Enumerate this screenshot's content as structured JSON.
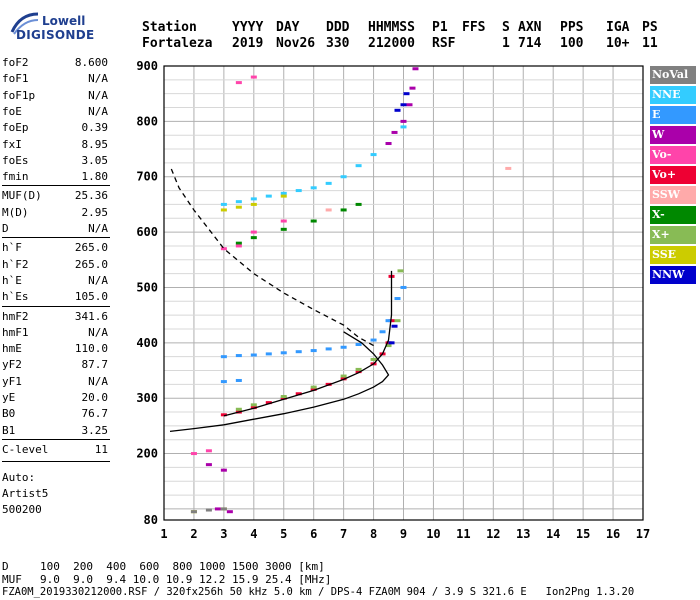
{
  "logo": {
    "line1": "Lowell",
    "line2": "DIGISONDE"
  },
  "header": {
    "labels": [
      "Station",
      "YYYY",
      "DAY",
      "DDD",
      "HHMMSS",
      "P1",
      "FFS",
      "S",
      "AXN",
      "PPS",
      "IGA",
      "PS"
    ],
    "values": [
      "Fortaleza",
      "2019",
      "Nov26",
      "330",
      "212000",
      "RSF",
      "",
      "1",
      "714",
      "100",
      "10+",
      "11"
    ]
  },
  "params": [
    {
      "label": "foF2",
      "value": "8.600"
    },
    {
      "label": "foF1",
      "value": "N/A"
    },
    {
      "label": "foF1p",
      "value": "N/A"
    },
    {
      "label": "foE",
      "value": "N/A"
    },
    {
      "label": "foEp",
      "value": "0.39"
    },
    {
      "label": "fxI",
      "value": "8.95"
    },
    {
      "label": "foEs",
      "value": "3.05"
    },
    {
      "label": "fmin",
      "value": "1.80"
    },
    {
      "label": "MUF(D)",
      "value": "25.36"
    },
    {
      "label": "M(D)",
      "value": "2.95"
    },
    {
      "label": "D",
      "value": "N/A"
    },
    {
      "label": "h`F",
      "value": "265.0"
    },
    {
      "label": "h`F2",
      "value": "265.0"
    },
    {
      "label": "h`E",
      "value": "N/A"
    },
    {
      "label": "h`Es",
      "value": "105.0"
    },
    {
      "label": "hmF2",
      "value": "341.6"
    },
    {
      "label": "hmF1",
      "value": "N/A"
    },
    {
      "label": "hmE",
      "value": "110.0"
    },
    {
      "label": "yF2",
      "value": "87.7"
    },
    {
      "label": "yF1",
      "value": "N/A"
    },
    {
      "label": "yE",
      "value": "20.0"
    },
    {
      "label": "B0",
      "value": "76.7"
    },
    {
      "label": "B1",
      "value": "3.25"
    },
    {
      "label": "C-level",
      "value": "11"
    }
  ],
  "auto": {
    "line1": "Auto:",
    "line2": "Artist5",
    "line3": "500200"
  },
  "legend": [
    {
      "label": "NoVal",
      "color": "#808080"
    },
    {
      "label": "NNE",
      "color": "#33ccff"
    },
    {
      "label": "E",
      "color": "#3399ff"
    },
    {
      "label": "W",
      "color": "#aa00aa"
    },
    {
      "label": "Vo-",
      "color": "#ff44aa"
    },
    {
      "label": "Vo+",
      "color": "#ee0033"
    },
    {
      "label": "SSW",
      "color": "#ffaaaa"
    },
    {
      "label": "X-",
      "color": "#008800"
    },
    {
      "label": "X+",
      "color": "#88bb55"
    },
    {
      "label": "SSE",
      "color": "#cccc00"
    },
    {
      "label": "NNW",
      "color": "#0000cc"
    }
  ],
  "footer": {
    "d_label": "D",
    "d_values": "100  200  400  600  800 1000 1500 3000 [km]",
    "muf_label": "MUF",
    "muf_values": "9.0  9.0  9.4 10.0 10.9 12.2 15.9 25.4 [MHz]",
    "info": "FZA0M_2019330212000.RSF / 320fx256h 50 kHz 5.0 km / DPS-4 FZA0M 904 / 3.9 S 321.6 E   Ion2Png 1.3.20"
  },
  "chart_data": {
    "type": "scatter",
    "title": "",
    "xlabel": "",
    "ylabel": "",
    "xlim": [
      1,
      17
    ],
    "ylim": [
      80,
      900
    ],
    "xticks": [
      1,
      2,
      3,
      4,
      5,
      6,
      7,
      8,
      9,
      10,
      11,
      12,
      13,
      14,
      15,
      16,
      17
    ],
    "yticks": [
      80,
      200,
      300,
      400,
      500,
      600,
      700,
      800,
      900
    ],
    "grid": true,
    "series": [
      {
        "name": "Vo+",
        "color": "#ee0033",
        "points": [
          [
            3.0,
            270
          ],
          [
            3.5,
            275
          ],
          [
            4.0,
            283
          ],
          [
            4.5,
            292
          ],
          [
            5.0,
            300
          ],
          [
            5.5,
            308
          ],
          [
            6.0,
            316
          ],
          [
            6.5,
            325
          ],
          [
            7.0,
            335
          ],
          [
            7.5,
            348
          ],
          [
            8.0,
            362
          ],
          [
            8.3,
            380
          ],
          [
            8.5,
            400
          ],
          [
            8.6,
            440
          ],
          [
            8.6,
            520
          ]
        ]
      },
      {
        "name": "E",
        "color": "#3399ff",
        "points": [
          [
            3.0,
            375
          ],
          [
            3.5,
            377
          ],
          [
            4.0,
            378
          ],
          [
            4.5,
            380
          ],
          [
            5.0,
            382
          ],
          [
            5.5,
            384
          ],
          [
            6.0,
            386
          ],
          [
            6.5,
            389
          ],
          [
            7.0,
            392
          ],
          [
            7.5,
            397
          ],
          [
            8.0,
            405
          ],
          [
            8.3,
            420
          ],
          [
            8.5,
            440
          ],
          [
            8.8,
            480
          ],
          [
            9.0,
            500
          ],
          [
            3.0,
            330
          ],
          [
            3.5,
            332
          ]
        ]
      },
      {
        "name": "X+",
        "color": "#88bb55",
        "points": [
          [
            3.5,
            280
          ],
          [
            4.0,
            288
          ],
          [
            5.0,
            303
          ],
          [
            6.0,
            320
          ],
          [
            7.0,
            340
          ],
          [
            7.5,
            352
          ],
          [
            8.0,
            370
          ],
          [
            8.5,
            395
          ],
          [
            8.8,
            440
          ],
          [
            8.9,
            530
          ]
        ]
      },
      {
        "name": "NNE",
        "color": "#33ccff",
        "points": [
          [
            3.0,
            650
          ],
          [
            3.5,
            655
          ],
          [
            4.0,
            660
          ],
          [
            4.5,
            665
          ],
          [
            5.0,
            670
          ],
          [
            5.5,
            675
          ],
          [
            6.0,
            680
          ],
          [
            6.5,
            688
          ],
          [
            7.0,
            700
          ],
          [
            7.5,
            720
          ],
          [
            8.0,
            740
          ],
          [
            8.5,
            760
          ],
          [
            9.0,
            790
          ]
        ]
      },
      {
        "name": "W",
        "color": "#aa00aa",
        "points": [
          [
            8.5,
            760
          ],
          [
            8.7,
            780
          ],
          [
            9.0,
            800
          ],
          [
            9.2,
            830
          ],
          [
            9.3,
            860
          ],
          [
            9.4,
            895
          ],
          [
            2.5,
            180
          ],
          [
            3.0,
            170
          ],
          [
            2.8,
            100
          ],
          [
            3.2,
            95
          ]
        ]
      },
      {
        "name": "X-",
        "color": "#008800",
        "points": [
          [
            3.5,
            580
          ],
          [
            4.0,
            590
          ],
          [
            5.0,
            605
          ],
          [
            6.0,
            620
          ],
          [
            7.0,
            640
          ],
          [
            7.5,
            650
          ]
        ]
      },
      {
        "name": "Vo-",
        "color": "#ff44aa",
        "points": [
          [
            3.0,
            570
          ],
          [
            3.5,
            575
          ],
          [
            4.0,
            600
          ],
          [
            5.0,
            620
          ],
          [
            3.5,
            870
          ],
          [
            4.0,
            880
          ],
          [
            2.0,
            200
          ],
          [
            2.5,
            205
          ]
        ]
      },
      {
        "name": "SSE",
        "color": "#cccc00",
        "points": [
          [
            3.0,
            640
          ],
          [
            3.5,
            645
          ],
          [
            4.0,
            650
          ],
          [
            5.0,
            665
          ],
          [
            2.0,
            95
          ],
          [
            3.0,
            100
          ]
        ]
      },
      {
        "name": "NNW",
        "color": "#0000cc",
        "points": [
          [
            8.8,
            820
          ],
          [
            9.0,
            830
          ],
          [
            9.1,
            850
          ],
          [
            8.6,
            400
          ],
          [
            8.7,
            430
          ]
        ]
      },
      {
        "name": "NoVal",
        "color": "#808080",
        "points": [
          [
            2.0,
            95
          ],
          [
            2.5,
            98
          ],
          [
            3.0,
            100
          ]
        ]
      },
      {
        "name": "SSW",
        "color": "#ffaaaa",
        "points": [
          [
            12.5,
            715
          ],
          [
            6.5,
            640
          ]
        ]
      }
    ],
    "lines": [
      {
        "name": "profile",
        "style": "solid",
        "color": "#000000",
        "points": [
          [
            1.2,
            240
          ],
          [
            2.0,
            245
          ],
          [
            3.0,
            252
          ],
          [
            4.0,
            262
          ],
          [
            5.0,
            272
          ],
          [
            6.0,
            284
          ],
          [
            7.0,
            298
          ],
          [
            7.5,
            308
          ],
          [
            8.0,
            320
          ],
          [
            8.3,
            330
          ],
          [
            8.5,
            342
          ],
          [
            8.3,
            360
          ],
          [
            8.0,
            380
          ],
          [
            7.6,
            400
          ],
          [
            7.0,
            420
          ]
        ]
      },
      {
        "name": "trace-fit",
        "style": "solid",
        "color": "#000000",
        "points": [
          [
            3.0,
            268
          ],
          [
            4.0,
            282
          ],
          [
            5.0,
            298
          ],
          [
            6.0,
            314
          ],
          [
            7.0,
            334
          ],
          [
            7.5,
            346
          ],
          [
            8.0,
            362
          ],
          [
            8.3,
            380
          ],
          [
            8.5,
            405
          ],
          [
            8.6,
            450
          ],
          [
            8.6,
            530
          ]
        ]
      },
      {
        "name": "extrapolation",
        "style": "dashed",
        "color": "#000000",
        "points": [
          [
            8.0,
            395
          ],
          [
            7.5,
            410
          ],
          [
            7.0,
            432
          ],
          [
            6.0,
            460
          ],
          [
            5.0,
            490
          ],
          [
            4.0,
            525
          ],
          [
            3.0,
            570
          ],
          [
            2.5,
            605
          ],
          [
            2.0,
            640
          ],
          [
            1.5,
            680
          ],
          [
            1.2,
            720
          ]
        ]
      }
    ]
  }
}
